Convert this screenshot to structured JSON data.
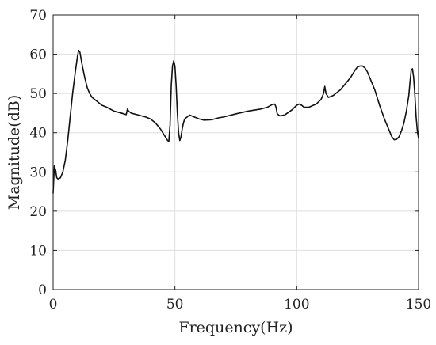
{
  "chart_data": {
    "type": "line",
    "title": "",
    "xlabel": "Frequency(Hz)",
    "ylabel": "Magnitude(dB)",
    "xlim": [
      0,
      150
    ],
    "ylim": [
      0,
      70
    ],
    "x_ticks": [
      0,
      50,
      100,
      150
    ],
    "y_ticks": [
      0,
      10,
      20,
      30,
      40,
      50,
      60,
      70
    ],
    "grid": true,
    "legend": "none",
    "line_color": "#111111",
    "series": [
      {
        "x": [
          0,
          0.5,
          1,
          1.5,
          2,
          3,
          4,
          5,
          6,
          7,
          8,
          9,
          10,
          10.5,
          11,
          12,
          13,
          14,
          15,
          16,
          18,
          20,
          22,
          25,
          28,
          30,
          30.5,
          31,
          32,
          35,
          38,
          40,
          42,
          44,
          45,
          46,
          47,
          47.5,
          48,
          48.5,
          49,
          49.5,
          50,
          50.5,
          51,
          51.5,
          52,
          52.5,
          53,
          53.5,
          54,
          56,
          58,
          60,
          62,
          65,
          68,
          70,
          75,
          80,
          85,
          88,
          90,
          91,
          91.5,
          92,
          93,
          95,
          98,
          100,
          101,
          102,
          103,
          105,
          108,
          110,
          111,
          111.5,
          112,
          113,
          115,
          118,
          120,
          122,
          124,
          125,
          126,
          127,
          128,
          129,
          130,
          132,
          134,
          136,
          138,
          139,
          140,
          141,
          142,
          143,
          144,
          145,
          146,
          146.5,
          147,
          147.5,
          148,
          148.5,
          149,
          149.5,
          150
        ],
        "y": [
          24.5,
          31.5,
          30.5,
          28.5,
          28.2,
          28.5,
          30,
          33,
          38,
          44,
          50,
          55,
          59.5,
          61,
          60.5,
          57,
          54,
          51.5,
          50,
          49,
          48,
          47,
          46.5,
          45.5,
          45,
          44.6,
          46,
          45.5,
          45,
          44.5,
          44,
          43.5,
          42.5,
          41,
          40,
          39,
          38,
          37.8,
          42,
          52,
          57,
          58.3,
          57,
          52,
          45,
          40,
          38,
          39,
          41,
          42.5,
          43.5,
          44.5,
          44,
          43.5,
          43.2,
          43.3,
          43.8,
          44,
          44.8,
          45.5,
          46,
          46.5,
          47.2,
          47.3,
          46.5,
          44.8,
          44.3,
          44.5,
          45.8,
          47,
          47.3,
          47,
          46.5,
          46.5,
          47.3,
          48.5,
          50,
          51.8,
          50,
          49,
          49.5,
          51,
          52.5,
          54,
          56,
          56.8,
          57,
          57,
          56.5,
          55.5,
          54,
          51,
          47,
          43.5,
          40.5,
          39,
          38.2,
          38.3,
          39,
          40.5,
          42.5,
          45.5,
          49.5,
          53,
          56,
          56.3,
          54,
          49.5,
          44,
          40.5,
          38.5
        ]
      }
    ]
  }
}
